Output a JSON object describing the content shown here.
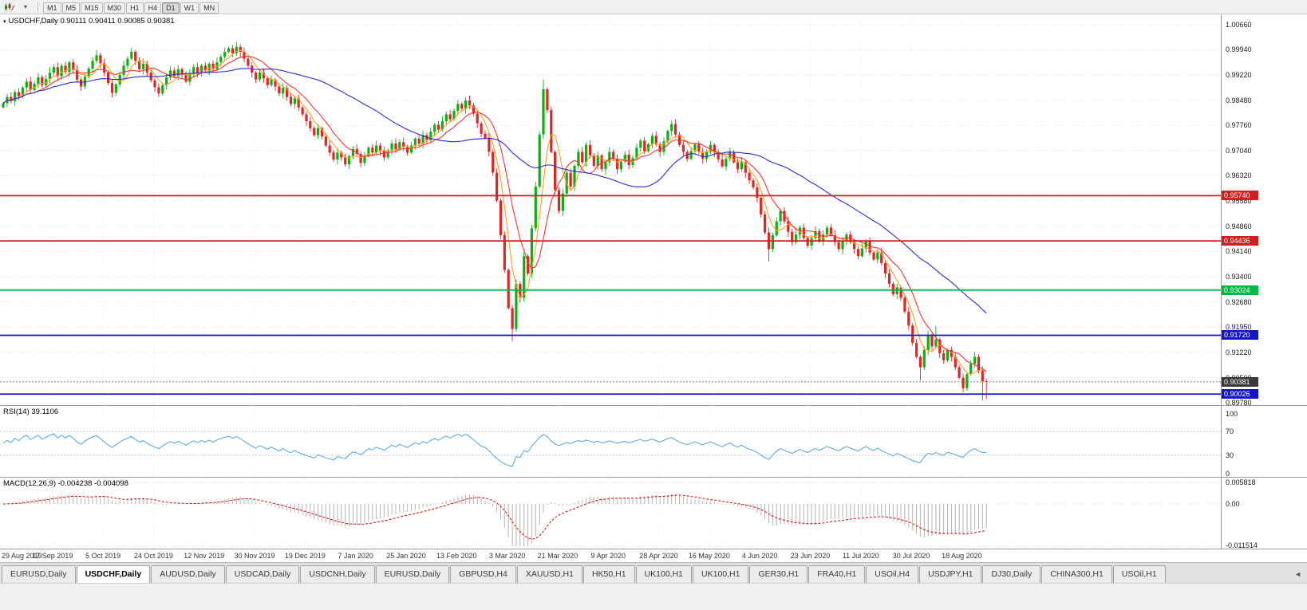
{
  "toolbar": {
    "timeframes": [
      "M1",
      "M5",
      "M15",
      "M30",
      "H1",
      "H4",
      "D1",
      "W1",
      "MN"
    ],
    "active_timeframe": "D1",
    "dropdown_glyph": "▾"
  },
  "icons": {
    "toolbar_chart": "candlestick-chart-icon",
    "toolbar_caret": "dropdown-caret-icon",
    "caption_collapse": "collapse-triangle-icon",
    "tab_scroll": "scroll-left-icon"
  },
  "chart": {
    "caption": "USDCHF,Daily 0.90111 0.90411 0.90085 0.90381",
    "collapse_glyph": "▾",
    "price_axis_ticks": [
      "1.00660",
      "0.99940",
      "0.99220",
      "0.98480",
      "0.97760",
      "0.97040",
      "0.96320",
      "0.95580",
      "0.94860",
      "0.94140",
      "0.93400",
      "0.92680",
      "0.91950",
      "0.91220",
      "0.90500",
      "0.89780"
    ],
    "levels": [
      {
        "label": "0.95740",
        "value": 0.9574,
        "color": "#cf2020"
      },
      {
        "label": "0.94436",
        "value": 0.94436,
        "color": "#cf2020"
      },
      {
        "label": "0.93024",
        "value": 0.93024,
        "color": "#00bb44"
      },
      {
        "label": "0.91720",
        "value": 0.9172,
        "color": "#1515c8"
      },
      {
        "label": "0.90026",
        "value": 0.90026,
        "color": "#1515c8"
      }
    ],
    "current_price": {
      "label": "0.90381",
      "value": 0.90381,
      "color": "#3a3a3a"
    }
  },
  "rsi": {
    "label": "RSI(14) 39.1106",
    "axis": [
      "100",
      "70",
      "30",
      "0"
    ],
    "levels": [
      70,
      30
    ],
    "color": "#4fa3e3"
  },
  "macd": {
    "label": "MACD(12,26,9) -0.004238 -0.004098",
    "axis": [
      "0.005818",
      "0.00",
      "-0.011514"
    ],
    "axis_values": [
      0.005818,
      0,
      -0.011514
    ],
    "histogram_color": "#b4b4b4",
    "signal_color": "#e00000"
  },
  "time_axis": {
    "dates": [
      "29 Aug 2019",
      "17 Sep 2019",
      "5 Oct 2019",
      "24 Oct 2019",
      "12 Nov 2019",
      "30 Nov 2019",
      "19 Dec 2019",
      "7 Jan 2020",
      "25 Jan 2020",
      "13 Feb 2020",
      "3 Mar 2020",
      "21 Mar 2020",
      "9 Apr 2020",
      "28 Apr 2020",
      "16 May 2020",
      "4 Jun 2020",
      "23 Jun 2020",
      "11 Jul 2020",
      "30 Jul 2020",
      "18 Aug 2020"
    ]
  },
  "tabbar": {
    "tabs": [
      "EURUSD,Daily",
      "USDCHF,Daily",
      "AUDUSD,Daily",
      "USDCAD,Daily",
      "USDCNH,Daily",
      "EURUSD,Daily",
      "GBPUSD,H4",
      "XAUUSD,H1",
      "HK50,H1",
      "UK100,H1",
      "UK100,H1",
      "GER30,H1",
      "FRA40,H1",
      "USOil,H4",
      "USDJPY,H1",
      "DJ30,Daily",
      "CHINA300,H1",
      "USOil,H1"
    ],
    "active_index": 1,
    "scroll_glyph": "◄"
  },
  "chart_data": {
    "type": "candlestick",
    "symbol": "USDCHF",
    "period": "Daily",
    "ylim": [
      0.8978,
      1.0066
    ],
    "bull_color": "#0faf0f",
    "bear_color": "#e02525",
    "closes": [
      0.984,
      0.9858,
      0.9846,
      0.9872,
      0.986,
      0.9885,
      0.9902,
      0.9878,
      0.9896,
      0.9915,
      0.9892,
      0.991,
      0.9928,
      0.9944,
      0.9918,
      0.9948,
      0.993,
      0.9958,
      0.9936,
      0.9908,
      0.9888,
      0.9916,
      0.994,
      0.9962,
      0.9978,
      0.9955,
      0.9928,
      0.9898,
      0.987,
      0.9894,
      0.9922,
      0.9948,
      0.9968,
      0.9988,
      0.9962,
      0.9938,
      0.9954,
      0.9928,
      0.9906,
      0.9886,
      0.9868,
      0.9892,
      0.9914,
      0.9934,
      0.9918,
      0.9938,
      0.9922,
      0.9902,
      0.9924,
      0.9944,
      0.9928,
      0.9948,
      0.9934,
      0.9954,
      0.9938,
      0.9958,
      0.9974,
      0.9988,
      0.9998,
      0.9984,
      1.0002,
      0.9988,
      0.9968,
      0.9948,
      0.9928,
      0.9908,
      0.9928,
      0.9912,
      0.9892,
      0.9908,
      0.9888,
      0.9868,
      0.9884,
      0.9858,
      0.9838,
      0.9854,
      0.9828,
      0.9808,
      0.9788,
      0.9768,
      0.9748,
      0.9768,
      0.9744,
      0.9718,
      0.9698,
      0.9678,
      0.9698,
      0.9684,
      0.9664,
      0.9688,
      0.9708,
      0.9694,
      0.9668,
      0.9688,
      0.9712,
      0.9698,
      0.9718,
      0.9704,
      0.9684,
      0.9704,
      0.9724,
      0.9708,
      0.9728,
      0.9714,
      0.9698,
      0.9718,
      0.9738,
      0.9724,
      0.9748,
      0.9734,
      0.9758,
      0.9778,
      0.9764,
      0.9788,
      0.9808,
      0.9794,
      0.9818,
      0.9838,
      0.9824,
      0.9848,
      0.9834,
      0.981,
      0.9782,
      0.9752,
      0.974,
      0.97,
      0.964,
      0.956,
      0.946,
      0.936,
      0.925,
      0.919,
      0.932,
      0.928,
      0.94,
      0.935,
      0.948,
      0.96,
      0.975,
      0.988,
      0.982,
      0.97,
      0.959,
      0.953,
      0.958,
      0.964,
      0.96,
      0.966,
      0.97,
      0.967,
      0.972,
      0.969,
      0.966,
      0.969,
      0.965,
      0.967,
      0.97,
      0.968,
      0.965,
      0.9672,
      0.9692,
      0.9662,
      0.9682,
      0.9712,
      0.9732,
      0.9702,
      0.9722,
      0.9746,
      0.9722,
      0.97,
      0.973,
      0.976,
      0.978,
      0.975,
      0.972,
      0.97,
      0.968,
      0.9702,
      0.9722,
      0.97,
      0.968,
      0.97,
      0.972,
      0.9698,
      0.9678,
      0.9658,
      0.968,
      0.97,
      0.967,
      0.965,
      0.967,
      0.964,
      0.9618,
      0.9598,
      0.9568,
      0.952,
      0.9468,
      0.942,
      0.946,
      0.95,
      0.953,
      0.95,
      0.947,
      0.944,
      0.9462,
      0.9482,
      0.9452,
      0.943,
      0.9452,
      0.9472,
      0.9442,
      0.9462,
      0.9482,
      0.946,
      0.944,
      0.942,
      0.9442,
      0.9462,
      0.944,
      0.942,
      0.94,
      0.9422,
      0.9442,
      0.941,
      0.939,
      0.941,
      0.938,
      0.935,
      0.932,
      0.929,
      0.931,
      0.928,
      0.924,
      0.92,
      0.915,
      0.911,
      0.908,
      0.913,
      0.917,
      0.914,
      0.916,
      0.912,
      0.91,
      0.913,
      0.911,
      0.908,
      0.905,
      0.902,
      0.906,
      0.909,
      0.911,
      0.907,
      0.904,
      0.90381
    ],
    "wick_overrides": {
      "131": {
        "low": 0.9155
      },
      "139": {
        "high": 0.9908
      },
      "197": {
        "low": 0.9385
      },
      "236": {
        "low": 0.9042
      },
      "240": {
        "high": 0.9198
      },
      "252": {
        "low": 0.8985
      },
      "253": {
        "low": 0.8988
      }
    },
    "moving_averages": [
      {
        "period": 5,
        "color": "#ff9e1b"
      },
      {
        "period": 10,
        "color": "#f23333"
      },
      {
        "period": 40,
        "color": "#2b2bd0"
      }
    ]
  }
}
